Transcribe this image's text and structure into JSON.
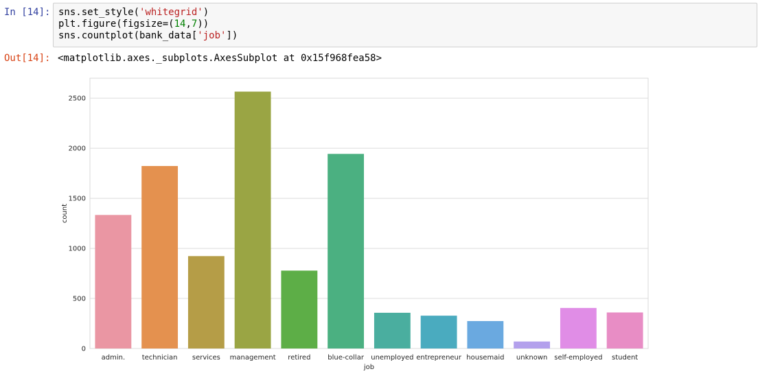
{
  "cell": {
    "input_prompt": "In [14]:",
    "code_lines": [
      {
        "segments": [
          {
            "text": "sns.set_style(",
            "cls": ""
          },
          {
            "text": "'whitegrid'",
            "cls": "str"
          },
          {
            "text": ")",
            "cls": ""
          }
        ]
      },
      {
        "segments": [
          {
            "text": "plt.figure(figsize=(",
            "cls": ""
          },
          {
            "text": "14",
            "cls": "num"
          },
          {
            "text": ",",
            "cls": ""
          },
          {
            "text": "7",
            "cls": "num"
          },
          {
            "text": "))",
            "cls": ""
          }
        ]
      },
      {
        "segments": [
          {
            "text": "sns.countplot(bank_data[",
            "cls": ""
          },
          {
            "text": "'job'",
            "cls": "str"
          },
          {
            "text": "])",
            "cls": ""
          }
        ]
      }
    ],
    "output_prompt": "Out[14]:",
    "output_text": "<matplotlib.axes._subplots.AxesSubplot at 0x15f968fea58>"
  },
  "chart_data": {
    "type": "bar",
    "categories": [
      "admin.",
      "technician",
      "services",
      "management",
      "retired",
      "blue-collar",
      "unemployed",
      "entrepreneur",
      "housemaid",
      "unknown",
      "self-employed",
      "student"
    ],
    "values": [
      1334,
      1823,
      923,
      2566,
      778,
      1944,
      357,
      328,
      274,
      70,
      405,
      360
    ],
    "colors": [
      "#ea96a3",
      "#e4914f",
      "#b59d47",
      "#9aa544",
      "#5dae47",
      "#4bb081",
      "#4aae9f",
      "#4aabbf",
      "#6aa9e0",
      "#b3a0ec",
      "#e08de6",
      "#e88dc5"
    ],
    "xlabel": "job",
    "ylabel": "count",
    "ylim": [
      0,
      2700
    ],
    "yticks": [
      0,
      500,
      1000,
      1500,
      2000,
      2500
    ],
    "grid": true,
    "style": "whitegrid"
  }
}
